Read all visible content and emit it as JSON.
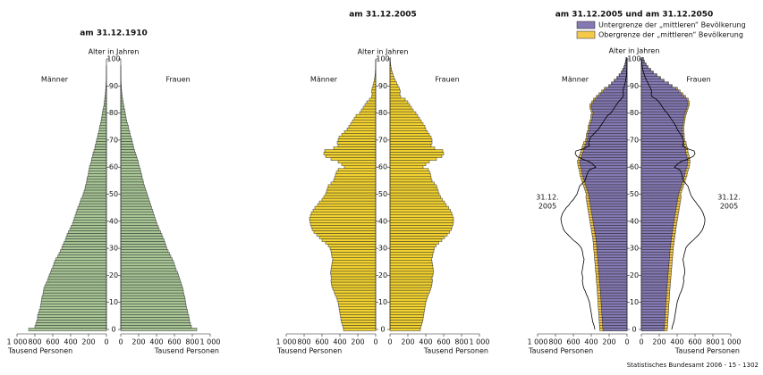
{
  "chart_data": [
    {
      "type": "pyramid",
      "title": "am 31.12.1910",
      "y_label": "Alter in Jahren",
      "x_label": "Tausend Personen",
      "side_labels": [
        "Männer",
        "Frauen"
      ],
      "ages": [
        0,
        1,
        2,
        3,
        4,
        5,
        6,
        7,
        8,
        9,
        10,
        11,
        12,
        13,
        14,
        15,
        16,
        17,
        18,
        19,
        20,
        21,
        22,
        23,
        24,
        25,
        26,
        27,
        28,
        29,
        30,
        31,
        32,
        33,
        34,
        35,
        36,
        37,
        38,
        39,
        40,
        41,
        42,
        43,
        44,
        45,
        46,
        47,
        48,
        49,
        50,
        51,
        52,
        53,
        54,
        55,
        56,
        57,
        58,
        59,
        60,
        61,
        62,
        63,
        64,
        65,
        66,
        67,
        68,
        69,
        70,
        71,
        72,
        73,
        74,
        75,
        76,
        77,
        78,
        79,
        80,
        81,
        82,
        83,
        84,
        85,
        86,
        87,
        88,
        89,
        90,
        91,
        92,
        93,
        94,
        95,
        96,
        97,
        98,
        99,
        100
      ],
      "ylim": [
        0,
        100
      ],
      "yticks": [
        0,
        10,
        20,
        30,
        40,
        50,
        60,
        70,
        80,
        90,
        100
      ],
      "xlim": [
        0,
        1000
      ],
      "xticks": [
        0,
        200,
        400,
        600,
        800,
        {
          "value": 1000,
          "label": "1 000"
        }
      ],
      "series": [
        {
          "color": "#a8c596",
          "left": [
            870,
            800,
            790,
            780,
            770,
            770,
            760,
            750,
            740,
            735,
            730,
            725,
            720,
            710,
            705,
            700,
            690,
            675,
            660,
            650,
            640,
            625,
            615,
            600,
            590,
            580,
            565,
            545,
            530,
            515,
            500,
            490,
            475,
            460,
            450,
            440,
            425,
            410,
            395,
            380,
            370,
            360,
            350,
            340,
            330,
            320,
            305,
            295,
            285,
            270,
            260,
            250,
            240,
            235,
            225,
            220,
            215,
            205,
            200,
            195,
            190,
            180,
            170,
            165,
            155,
            150,
            140,
            130,
            125,
            115,
            110,
            100,
            95,
            85,
            80,
            75,
            68,
            60,
            55,
            50,
            45,
            40,
            33,
            28,
            24,
            20,
            16,
            12,
            10,
            8,
            6,
            4,
            3,
            2,
            2,
            1,
            1,
            1,
            0,
            0,
            0
          ],
          "right": [
            850,
            790,
            780,
            770,
            765,
            760,
            750,
            745,
            735,
            730,
            725,
            720,
            715,
            705,
            700,
            695,
            685,
            675,
            665,
            655,
            645,
            635,
            620,
            610,
            600,
            590,
            575,
            560,
            545,
            530,
            515,
            505,
            495,
            485,
            470,
            460,
            445,
            430,
            420,
            405,
            395,
            385,
            375,
            365,
            355,
            345,
            335,
            325,
            315,
            305,
            295,
            285,
            275,
            265,
            255,
            250,
            240,
            235,
            225,
            220,
            210,
            200,
            195,
            185,
            175,
            165,
            155,
            145,
            140,
            130,
            125,
            115,
            105,
            100,
            90,
            85,
            75,
            68,
            60,
            55,
            50,
            45,
            38,
            32,
            26,
            22,
            17,
            13,
            10,
            8,
            6,
            4,
            3,
            2,
            2,
            1,
            1,
            1,
            0,
            0,
            0
          ]
        }
      ]
    },
    {
      "type": "pyramid",
      "title": "am 31.12.2005",
      "y_label": "Alter in Jahren",
      "x_label": "Tausend Personen",
      "side_labels": [
        "Männer",
        "Frauen"
      ],
      "ages": [
        0,
        1,
        2,
        3,
        4,
        5,
        6,
        7,
        8,
        9,
        10,
        11,
        12,
        13,
        14,
        15,
        16,
        17,
        18,
        19,
        20,
        21,
        22,
        23,
        24,
        25,
        26,
        27,
        28,
        29,
        30,
        31,
        32,
        33,
        34,
        35,
        36,
        37,
        38,
        39,
        40,
        41,
        42,
        43,
        44,
        45,
        46,
        47,
        48,
        49,
        50,
        51,
        52,
        53,
        54,
        55,
        56,
        57,
        58,
        59,
        60,
        61,
        62,
        63,
        64,
        65,
        66,
        67,
        68,
        69,
        70,
        71,
        72,
        73,
        74,
        75,
        76,
        77,
        78,
        79,
        80,
        81,
        82,
        83,
        84,
        85,
        86,
        87,
        88,
        89,
        90,
        91,
        92,
        93,
        94,
        95,
        96,
        97,
        98,
        99,
        100
      ],
      "ylim": [
        0,
        100
      ],
      "yticks": [
        0,
        10,
        20,
        30,
        40,
        50,
        60,
        70,
        80,
        90,
        100
      ],
      "xlim": [
        0,
        1000
      ],
      "xticks": [
        0,
        200,
        400,
        600,
        800,
        {
          "value": 1000,
          "label": "1 000"
        }
      ],
      "series": [
        {
          "color": "#f2d230",
          "left": [
            360,
            365,
            375,
            385,
            390,
            395,
            400,
            405,
            410,
            415,
            420,
            430,
            440,
            455,
            465,
            480,
            490,
            495,
            500,
            495,
            500,
            505,
            500,
            495,
            490,
            485,
            480,
            490,
            495,
            500,
            510,
            530,
            560,
            600,
            630,
            660,
            690,
            710,
            720,
            730,
            735,
            740,
            730,
            720,
            700,
            680,
            650,
            630,
            600,
            580,
            560,
            550,
            540,
            530,
            500,
            470,
            460,
            450,
            440,
            420,
            350,
            380,
            420,
            500,
            560,
            580,
            570,
            470,
            420,
            430,
            420,
            410,
            380,
            350,
            320,
            300,
            280,
            260,
            240,
            220,
            180,
            160,
            140,
            120,
            100,
            70,
            45,
            40,
            45,
            40,
            30,
            22,
            16,
            11,
            7,
            5,
            3,
            2,
            1,
            1,
            0
          ],
          "right": [
            340,
            345,
            355,
            365,
            370,
            375,
            380,
            385,
            390,
            395,
            400,
            410,
            420,
            430,
            445,
            455,
            465,
            470,
            475,
            470,
            480,
            485,
            485,
            480,
            475,
            470,
            465,
            475,
            480,
            490,
            495,
            515,
            545,
            580,
            610,
            640,
            665,
            685,
            695,
            705,
            710,
            710,
            700,
            690,
            675,
            655,
            630,
            610,
            585,
            565,
            550,
            540,
            530,
            520,
            495,
            470,
            460,
            455,
            445,
            430,
            370,
            400,
            440,
            520,
            580,
            600,
            590,
            500,
            460,
            470,
            470,
            460,
            440,
            420,
            400,
            390,
            370,
            350,
            330,
            310,
            290,
            260,
            240,
            220,
            200,
            170,
            120,
            110,
            115,
            105,
            90,
            75,
            60,
            45,
            35,
            25,
            17,
            11,
            7,
            4,
            3
          ]
        }
      ]
    },
    {
      "type": "pyramid",
      "title": "am 31.12.2005 und am 31.12.2050",
      "y_label": "Alter in Jahren",
      "x_label": "Tausend Personen",
      "side_labels": [
        "Männer",
        "Frauen"
      ],
      "annotation": [
        "31.12.",
        "2005"
      ],
      "ages": [
        0,
        1,
        2,
        3,
        4,
        5,
        6,
        7,
        8,
        9,
        10,
        11,
        12,
        13,
        14,
        15,
        16,
        17,
        18,
        19,
        20,
        21,
        22,
        23,
        24,
        25,
        26,
        27,
        28,
        29,
        30,
        31,
        32,
        33,
        34,
        35,
        36,
        37,
        38,
        39,
        40,
        41,
        42,
        43,
        44,
        45,
        46,
        47,
        48,
        49,
        50,
        51,
        52,
        53,
        54,
        55,
        56,
        57,
        58,
        59,
        60,
        61,
        62,
        63,
        64,
        65,
        66,
        67,
        68,
        69,
        70,
        71,
        72,
        73,
        74,
        75,
        76,
        77,
        78,
        79,
        80,
        81,
        82,
        83,
        84,
        85,
        86,
        87,
        88,
        89,
        90,
        91,
        92,
        93,
        94,
        95,
        96,
        97,
        98,
        99,
        100
      ],
      "ylim": [
        0,
        100
      ],
      "yticks": [
        0,
        10,
        20,
        30,
        40,
        50,
        60,
        70,
        80,
        90,
        100
      ],
      "xlim": [
        0,
        1000
      ],
      "xticks": [
        0,
        200,
        400,
        600,
        800,
        {
          "value": 1000,
          "label": "1 000"
        }
      ],
      "series": [
        {
          "name": "Untergrenze der „mittleren“ Bevölkerung",
          "color": "#8579b3",
          "left": [
            270,
            272,
            274,
            276,
            278,
            280,
            282,
            284,
            286,
            288,
            290,
            292,
            294,
            296,
            298,
            300,
            302,
            305,
            308,
            310,
            312,
            315,
            318,
            320,
            322,
            325,
            328,
            330,
            333,
            335,
            338,
            340,
            343,
            346,
            350,
            355,
            360,
            365,
            370,
            375,
            380,
            385,
            390,
            395,
            400,
            405,
            410,
            415,
            420,
            425,
            430,
            440,
            450,
            460,
            470,
            480,
            490,
            500,
            505,
            510,
            520,
            525,
            530,
            520,
            510,
            500,
            490,
            480,
            470,
            460,
            450,
            440,
            440,
            430,
            420,
            420,
            410,
            400,
            390,
            390,
            380,
            390,
            400,
            400,
            380,
            360,
            330,
            300,
            270,
            240,
            200,
            170,
            140,
            110,
            85,
            60,
            45,
            30,
            20,
            12,
            8
          ],
          "right": [
            255,
            257,
            259,
            261,
            263,
            265,
            267,
            269,
            271,
            273,
            275,
            277,
            279,
            281,
            283,
            285,
            287,
            290,
            293,
            295,
            297,
            300,
            303,
            305,
            307,
            310,
            313,
            315,
            318,
            320,
            323,
            326,
            330,
            334,
            338,
            342,
            346,
            350,
            355,
            360,
            365,
            370,
            375,
            380,
            385,
            390,
            395,
            400,
            405,
            410,
            415,
            425,
            435,
            445,
            455,
            465,
            475,
            485,
            490,
            500,
            510,
            515,
            520,
            515,
            510,
            500,
            495,
            490,
            480,
            475,
            470,
            465,
            465,
            460,
            460,
            460,
            465,
            470,
            475,
            480,
            490,
            500,
            510,
            520,
            520,
            510,
            480,
            450,
            420,
            390,
            340,
            300,
            250,
            210,
            170,
            130,
            100,
            70,
            50,
            30,
            20
          ]
        },
        {
          "name": "Obergrenze der „mittleren“ Bevölkerung",
          "color": "#f6c948",
          "left": [
            305,
            307,
            309,
            311,
            313,
            315,
            317,
            319,
            321,
            323,
            325,
            327,
            329,
            331,
            333,
            335,
            337,
            340,
            343,
            345,
            347,
            350,
            353,
            355,
            357,
            360,
            363,
            365,
            368,
            370,
            373,
            375,
            378,
            381,
            385,
            390,
            395,
            400,
            405,
            410,
            415,
            420,
            425,
            430,
            435,
            440,
            445,
            450,
            455,
            460,
            455,
            465,
            475,
            485,
            495,
            505,
            515,
            525,
            530,
            535,
            545,
            550,
            555,
            545,
            535,
            525,
            515,
            505,
            495,
            485,
            465,
            455,
            455,
            445,
            435,
            435,
            425,
            415,
            405,
            405,
            395,
            405,
            415,
            415,
            395,
            375,
            345,
            315,
            285,
            255,
            205,
            175,
            145,
            115,
            90,
            65,
            50,
            35,
            25,
            17,
            13
          ],
          "right": [
            290,
            292,
            294,
            296,
            298,
            300,
            302,
            304,
            306,
            308,
            310,
            312,
            314,
            316,
            318,
            320,
            322,
            325,
            328,
            330,
            332,
            335,
            338,
            340,
            342,
            345,
            348,
            350,
            353,
            355,
            358,
            361,
            365,
            369,
            373,
            377,
            381,
            385,
            390,
            395,
            400,
            405,
            410,
            415,
            420,
            425,
            430,
            435,
            440,
            445,
            440,
            450,
            460,
            470,
            480,
            490,
            500,
            510,
            515,
            525,
            535,
            540,
            545,
            540,
            535,
            525,
            520,
            515,
            505,
            500,
            485,
            480,
            480,
            475,
            475,
            475,
            480,
            485,
            490,
            495,
            505,
            515,
            525,
            535,
            535,
            525,
            495,
            465,
            435,
            405,
            345,
            305,
            255,
            215,
            175,
            135,
            105,
            75,
            55,
            35,
            25
          ]
        }
      ]
    }
  ],
  "source": "Statistisches Bundesamt 2006 - 15 - 1302"
}
